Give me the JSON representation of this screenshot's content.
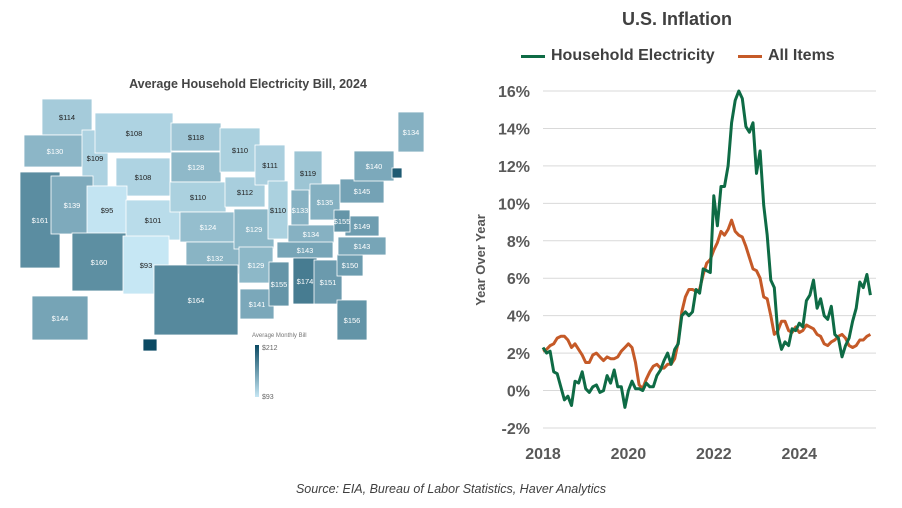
{
  "map": {
    "title": "Average Household Electricity Bill, 2024",
    "legend_title": "Average Monthly Bill",
    "legend_max": "$212",
    "legend_min": "$93",
    "color_min": "#c6e7f4",
    "color_max": "#0b4a63",
    "states": [
      {
        "id": "WA",
        "label": "$114",
        "value": 114
      },
      {
        "id": "OR",
        "label": "$130",
        "value": 130
      },
      {
        "id": "CA",
        "label": "$161",
        "value": 161
      },
      {
        "id": "ID",
        "label": "$109",
        "value": 109
      },
      {
        "id": "NV",
        "label": "$139",
        "value": 139
      },
      {
        "id": "MT",
        "label": "$108",
        "value": 108
      },
      {
        "id": "WY",
        "label": "$108",
        "value": 108
      },
      {
        "id": "UT",
        "label": "$95",
        "value": 95
      },
      {
        "id": "CO",
        "label": "$101",
        "value": 101
      },
      {
        "id": "AZ",
        "label": "$160",
        "value": 160
      },
      {
        "id": "NM",
        "label": "$93",
        "value": 93
      },
      {
        "id": "ND",
        "label": "$118",
        "value": 118
      },
      {
        "id": "SD",
        "label": "$128",
        "value": 128
      },
      {
        "id": "NE",
        "label": "$110",
        "value": 110
      },
      {
        "id": "KS",
        "label": "$124",
        "value": 124
      },
      {
        "id": "OK",
        "label": "$132",
        "value": 132
      },
      {
        "id": "TX",
        "label": "$164",
        "value": 164
      },
      {
        "id": "MN",
        "label": "$110",
        "value": 110
      },
      {
        "id": "IA",
        "label": "$112",
        "value": 112
      },
      {
        "id": "MO",
        "label": "$129",
        "value": 129
      },
      {
        "id": "AR",
        "label": "$129",
        "value": 129
      },
      {
        "id": "LA",
        "label": "$141",
        "value": 141
      },
      {
        "id": "WI",
        "label": "$111",
        "value": 111
      },
      {
        "id": "IL",
        "label": "$110",
        "value": 110
      },
      {
        "id": "MI",
        "label": "$119",
        "value": 119
      },
      {
        "id": "IN",
        "label": "$133",
        "value": 133
      },
      {
        "id": "OH",
        "label": "$135",
        "value": 135
      },
      {
        "id": "KY",
        "label": "$134",
        "value": 134
      },
      {
        "id": "TN",
        "label": "$143",
        "value": 143
      },
      {
        "id": "MS",
        "label": "$155",
        "value": 155
      },
      {
        "id": "AL",
        "label": "$174",
        "value": 174
      },
      {
        "id": "GA",
        "label": "$151",
        "value": 151
      },
      {
        "id": "FL",
        "label": "$156",
        "value": 156
      },
      {
        "id": "SC",
        "label": "$150",
        "value": 150
      },
      {
        "id": "NC",
        "label": "$143",
        "value": 143
      },
      {
        "id": "VA",
        "label": "$149",
        "value": 149
      },
      {
        "id": "WV",
        "label": "$155",
        "value": 155
      },
      {
        "id": "PA",
        "label": "$145",
        "value": 145
      },
      {
        "id": "NY",
        "label": "$140",
        "value": 140
      },
      {
        "id": "ME",
        "label": "$134",
        "value": 134
      },
      {
        "id": "AK",
        "label": "$144",
        "value": 144
      },
      {
        "id": "HI",
        "label": "",
        "value": 212
      },
      {
        "id": "CT",
        "label": "",
        "value": 200
      }
    ]
  },
  "chart_data": {
    "type": "line",
    "title": "U.S. Inflation",
    "ylabel": "Year Over Year",
    "xlabel": "",
    "xlim": [
      2018,
      2025.75
    ],
    "ylim": [
      -2,
      16
    ],
    "x_ticks": [
      "2018",
      "2020",
      "2022",
      "2024"
    ],
    "y_ticks": [
      "-2%",
      "0%",
      "2%",
      "4%",
      "6%",
      "8%",
      "10%",
      "12%",
      "14%",
      "16%"
    ],
    "grid": "horizontal",
    "legend": "top",
    "x_start": "2018-01",
    "frequency": "monthly",
    "series": [
      {
        "name": "Household Electricity",
        "color": "#0e6b45",
        "values": [
          2.3,
          2.0,
          2.1,
          1.0,
          0.9,
          0.2,
          -0.5,
          -0.3,
          -0.8,
          0.5,
          0.4,
          1.0,
          0.1,
          -0.1,
          0.2,
          0.3,
          -0.1,
          0.0,
          0.8,
          0.4,
          1.1,
          0.2,
          0.2,
          -0.9,
          0.0,
          0.5,
          0.1,
          0.1,
          0.0,
          0.4,
          0.2,
          0.2,
          0.8,
          1.1,
          1.6,
          2.0,
          1.4,
          2.2,
          2.5,
          4.0,
          4.2,
          4.0,
          4.2,
          5.4,
          5.2,
          6.5,
          6.4,
          6.3,
          10.4,
          8.8,
          10.9,
          10.9,
          12.0,
          14.3,
          15.5,
          16.0,
          15.6,
          14.1,
          13.8,
          14.3,
          11.6,
          12.8,
          9.9,
          8.3,
          5.9,
          5.5,
          3.0,
          2.2,
          2.6,
          2.4,
          3.3,
          3.2,
          3.6,
          3.4,
          4.8,
          5.1,
          5.9,
          4.4,
          4.9,
          4.0,
          3.8,
          4.5,
          3.0,
          2.8,
          1.8,
          2.4,
          2.8,
          3.7,
          4.4,
          5.8,
          5.5,
          6.2,
          5.1
        ]
      },
      {
        "name": "All Items",
        "color": "#c55a28",
        "values": [
          2.1,
          2.2,
          2.4,
          2.5,
          2.8,
          2.9,
          2.9,
          2.7,
          2.3,
          2.5,
          2.2,
          1.9,
          1.5,
          1.5,
          1.9,
          2.0,
          1.8,
          1.6,
          1.8,
          1.7,
          1.7,
          1.8,
          2.1,
          2.3,
          2.5,
          2.3,
          1.5,
          0.3,
          0.1,
          0.6,
          1.0,
          1.3,
          1.4,
          1.2,
          1.2,
          1.4,
          1.4,
          1.7,
          2.6,
          4.2,
          5.0,
          5.4,
          5.4,
          5.3,
          5.4,
          6.2,
          6.8,
          7.0,
          7.5,
          7.9,
          8.5,
          8.3,
          8.6,
          9.1,
          8.5,
          8.3,
          8.2,
          7.7,
          7.1,
          6.5,
          6.4,
          6.0,
          5.0,
          4.9,
          4.0,
          3.0,
          3.2,
          3.7,
          3.7,
          3.2,
          3.1,
          3.4,
          3.1,
          3.2,
          3.5,
          3.4,
          3.3,
          3.0,
          2.9,
          2.5,
          2.4,
          2.6,
          2.7,
          2.9,
          3.0,
          2.8,
          2.4,
          2.3,
          2.4,
          2.7,
          2.7,
          2.9,
          3.0
        ]
      }
    ]
  },
  "source": "Source: EIA, Bureau of Labor Statistics, Haver Analytics"
}
